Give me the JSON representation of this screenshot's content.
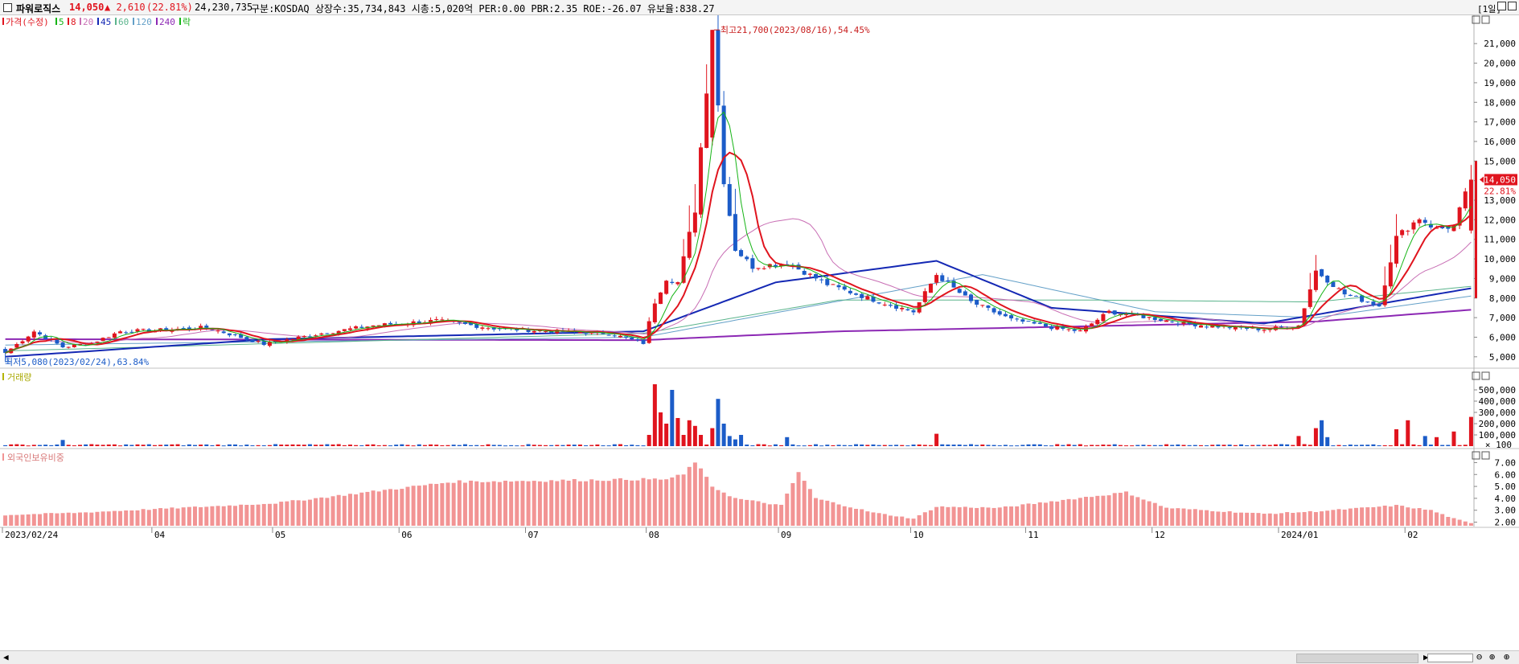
{
  "header": {
    "name": "파워로직스",
    "price": "14,050",
    "change": "▲ 2,610",
    "change_pct": "(22.81%)",
    "volume": "24,230,735",
    "info": "구분:KOSDAQ 상장수:35,734,843 시총:5,020억 PER:0.00 PBR:2.35 ROE:-26.07 유보율:838.27",
    "period": "[1일]"
  },
  "colors": {
    "up": "#e0141e",
    "down": "#1c5cc8",
    "ma5": "#16b416",
    "ma8": "#e0141e",
    "ma20": "#c86eb4",
    "ma45": "#1428b4",
    "ma60": "#5ab48c",
    "ma120": "#64a0c8",
    "ma240": "#8c28b4",
    "foreign": "#f29494"
  },
  "chart_data": [
    {
      "type": "candlestick",
      "title": "가격(수정)",
      "legend": [
        {
          "label": "가격(수정)",
          "color": "#e0141e"
        },
        {
          "label": "5",
          "color": "#16b416"
        },
        {
          "label": "8",
          "color": "#e0141e"
        },
        {
          "label": "20",
          "color": "#c86eb4"
        },
        {
          "label": "45",
          "color": "#1428b4"
        },
        {
          "label": "60",
          "color": "#5ab48c"
        },
        {
          "label": "120",
          "color": "#64a0c8"
        },
        {
          "label": "240",
          "color": "#8c28b4"
        },
        {
          "label": "락",
          "color": "#16b416"
        }
      ],
      "ylim": [
        4500,
        22200
      ],
      "yticks": [
        "5,000",
        "6,000",
        "7,000",
        "8,000",
        "9,000",
        "10,000",
        "11,000",
        "12,000",
        "13,000",
        "14,000",
        "15,000",
        "16,000",
        "17,000",
        "18,000",
        "19,000",
        "20,000",
        "21,000"
      ],
      "annotations": {
        "high": "최고21,700(2023/08/16),54.45%",
        "low": "최저5,080(2023/02/24),63.84%"
      },
      "last_price_label": "14,050",
      "last_pct_label": "22.81%",
      "anchors": [
        {
          "d": "2023-02-24",
          "c": 5200
        },
        {
          "d": "2023-03-03",
          "c": 6300
        },
        {
          "d": "2023-03-10",
          "c": 5500
        },
        {
          "d": "2023-03-17",
          "c": 5700
        },
        {
          "d": "2023-03-24",
          "c": 6300
        },
        {
          "d": "2023-04-03",
          "c": 6350
        },
        {
          "d": "2023-04-14",
          "c": 6500
        },
        {
          "d": "2023-04-28",
          "c": 5650
        },
        {
          "d": "2023-05-12",
          "c": 6200
        },
        {
          "d": "2023-05-25",
          "c": 6600
        },
        {
          "d": "2023-06-09",
          "c": 6850
        },
        {
          "d": "2023-06-23",
          "c": 6450
        },
        {
          "d": "2023-07-07",
          "c": 6300
        },
        {
          "d": "2023-07-21",
          "c": 6200
        },
        {
          "d": "2023-07-31",
          "c": 5700
        },
        {
          "d": "2023-08-02",
          "c": 7800
        },
        {
          "d": "2023-08-04",
          "c": 9000
        },
        {
          "d": "2023-08-08",
          "c": 8800
        },
        {
          "d": "2023-08-11",
          "c": 12500
        },
        {
          "d": "2023-08-14",
          "c": 15700
        },
        {
          "d": "2023-08-16",
          "c": 21700
        },
        {
          "d": "2023-08-18",
          "c": 14000
        },
        {
          "d": "2023-08-22",
          "c": 10500
        },
        {
          "d": "2023-08-25",
          "c": 9600
        },
        {
          "d": "2023-09-04",
          "c": 9800
        },
        {
          "d": "2023-09-13",
          "c": 8700
        },
        {
          "d": "2023-09-22",
          "c": 8000
        },
        {
          "d": "2023-10-04",
          "c": 7300
        },
        {
          "d": "2023-10-10",
          "c": 9200
        },
        {
          "d": "2023-10-18",
          "c": 7800
        },
        {
          "d": "2023-10-27",
          "c": 6900
        },
        {
          "d": "2023-11-07",
          "c": 6500
        },
        {
          "d": "2023-11-14",
          "c": 6300
        },
        {
          "d": "2023-11-21",
          "c": 7300
        },
        {
          "d": "2023-11-30",
          "c": 7000
        },
        {
          "d": "2023-12-08",
          "c": 6700
        },
        {
          "d": "2023-12-20",
          "c": 6500
        },
        {
          "d": "2023-12-28",
          "c": 6400
        },
        {
          "d": "2024-01-05",
          "c": 6600
        },
        {
          "d": "2024-01-10",
          "c": 9400
        },
        {
          "d": "2024-01-17",
          "c": 8200
        },
        {
          "d": "2024-01-25",
          "c": 7600
        },
        {
          "d": "2024-01-30",
          "c": 11100
        },
        {
          "d": "2024-02-05",
          "c": 12100
        },
        {
          "d": "2024-02-08",
          "c": 11500
        },
        {
          "d": "2024-02-13",
          "c": 11700
        },
        {
          "d": "2024-02-16",
          "c": 14050
        }
      ],
      "ma_levels": {
        "ma45": [
          {
            "d": "2023-02-24",
            "v": 5000
          },
          {
            "d": "2023-05-01",
            "v": 5900
          },
          {
            "d": "2023-07-31",
            "v": 6300
          },
          {
            "d": "2023-08-31",
            "v": 8800
          },
          {
            "d": "2023-10-10",
            "v": 9900
          },
          {
            "d": "2023-11-07",
            "v": 7500
          },
          {
            "d": "2023-12-28",
            "v": 6700
          },
          {
            "d": "2024-02-16",
            "v": 8500
          }
        ],
        "ma60": [
          {
            "d": "2023-02-24",
            "v": 5300
          },
          {
            "d": "2023-07-31",
            "v": 6200
          },
          {
            "d": "2023-09-15",
            "v": 7900
          },
          {
            "d": "2023-11-15",
            "v": 7900
          },
          {
            "d": "2024-01-10",
            "v": 7800
          },
          {
            "d": "2024-02-16",
            "v": 8600
          }
        ],
        "ma120": [
          {
            "d": "2023-02-24",
            "v": 5600
          },
          {
            "d": "2023-07-31",
            "v": 6000
          },
          {
            "d": "2023-10-20",
            "v": 9200
          },
          {
            "d": "2023-12-01",
            "v": 7300
          },
          {
            "d": "2024-01-10",
            "v": 7000
          },
          {
            "d": "2024-02-16",
            "v": 8100
          }
        ],
        "ma240": [
          {
            "d": "2023-02-24",
            "v": 5900
          },
          {
            "d": "2023-07-31",
            "v": 5850
          },
          {
            "d": "2023-09-15",
            "v": 6300
          },
          {
            "d": "2024-01-10",
            "v": 6800
          },
          {
            "d": "2024-02-16",
            "v": 7400
          }
        ]
      }
    },
    {
      "type": "bar",
      "title": "거래량",
      "ylim": [
        0,
        600000
      ],
      "yticks": [
        "100,000",
        "200,000",
        "300,000",
        "400,000",
        "500,000"
      ],
      "unit_label": "× 100",
      "spikes": [
        {
          "d": "2023-08-01",
          "v": 100000
        },
        {
          "d": "2023-08-02",
          "v": 550000
        },
        {
          "d": "2023-08-03",
          "v": 300000
        },
        {
          "d": "2023-08-04",
          "v": 200000
        },
        {
          "d": "2023-08-07",
          "v": 500000
        },
        {
          "d": "2023-08-08",
          "v": 250000
        },
        {
          "d": "2023-08-09",
          "v": 100000
        },
        {
          "d": "2023-08-10",
          "v": 230000
        },
        {
          "d": "2023-08-11",
          "v": 180000
        },
        {
          "d": "2023-08-14",
          "v": 100000
        },
        {
          "d": "2023-08-16",
          "v": 160000
        },
        {
          "d": "2023-08-17",
          "v": 420000
        },
        {
          "d": "2023-08-18",
          "v": 200000
        },
        {
          "d": "2023-08-21",
          "v": 90000
        },
        {
          "d": "2023-08-22",
          "v": 60000
        },
        {
          "d": "2023-08-23",
          "v": 100000
        },
        {
          "d": "2023-09-04",
          "v": 80000
        },
        {
          "d": "2023-10-10",
          "v": 110000
        },
        {
          "d": "2024-01-05",
          "v": 90000
        },
        {
          "d": "2024-01-10",
          "v": 160000
        },
        {
          "d": "2024-01-11",
          "v": 230000
        },
        {
          "d": "2024-01-12",
          "v": 80000
        },
        {
          "d": "2024-01-30",
          "v": 150000
        },
        {
          "d": "2024-02-01",
          "v": 230000
        },
        {
          "d": "2024-02-06",
          "v": 90000
        },
        {
          "d": "2024-02-08",
          "v": 80000
        },
        {
          "d": "2024-02-13",
          "v": 130000
        },
        {
          "d": "2024-02-16",
          "v": 260000
        }
      ],
      "base": 12000
    },
    {
      "type": "bar",
      "title": "외국인보유비중",
      "ylim": [
        1.7,
        7.3
      ],
      "yticks": [
        "2.00",
        "3.00",
        "4.00",
        "5.00",
        "6.00",
        "7.00"
      ],
      "anchors": [
        {
          "d": "2023-02-24",
          "v": 2.6
        },
        {
          "d": "2023-03-15",
          "v": 2.8
        },
        {
          "d": "2023-04-03",
          "v": 3.1
        },
        {
          "d": "2023-04-20",
          "v": 3.4
        },
        {
          "d": "2023-05-02",
          "v": 3.6
        },
        {
          "d": "2023-05-22",
          "v": 4.4
        },
        {
          "d": "2023-06-14",
          "v": 5.4
        },
        {
          "d": "2023-07-10",
          "v": 5.5
        },
        {
          "d": "2023-07-28",
          "v": 5.6
        },
        {
          "d": "2023-08-04",
          "v": 5.6
        },
        {
          "d": "2023-08-09",
          "v": 6.0
        },
        {
          "d": "2023-08-11",
          "v": 7.1
        },
        {
          "d": "2023-08-16",
          "v": 5.0
        },
        {
          "d": "2023-08-22",
          "v": 4.0
        },
        {
          "d": "2023-09-01",
          "v": 3.4
        },
        {
          "d": "2023-09-06",
          "v": 6.2
        },
        {
          "d": "2023-09-11",
          "v": 4.0
        },
        {
          "d": "2023-09-25",
          "v": 2.8
        },
        {
          "d": "2023-10-04",
          "v": 2.3
        },
        {
          "d": "2023-10-10",
          "v": 3.3
        },
        {
          "d": "2023-10-25",
          "v": 3.2
        },
        {
          "d": "2023-11-15",
          "v": 4.1
        },
        {
          "d": "2023-11-24",
          "v": 4.5
        },
        {
          "d": "2023-12-05",
          "v": 3.2
        },
        {
          "d": "2023-12-28",
          "v": 2.7
        },
        {
          "d": "2024-01-10",
          "v": 2.9
        },
        {
          "d": "2024-01-30",
          "v": 3.4
        },
        {
          "d": "2024-02-07",
          "v": 3.0
        },
        {
          "d": "2024-02-13",
          "v": 2.3
        },
        {
          "d": "2024-02-16",
          "v": 1.9
        }
      ]
    }
  ],
  "x_labels": [
    {
      "d": "2023-02-24",
      "t": "2023/02/24"
    },
    {
      "d": "2023-04-03",
      "t": "04"
    },
    {
      "d": "2023-05-02",
      "t": "05"
    },
    {
      "d": "2023-06-01",
      "t": "06"
    },
    {
      "d": "2023-07-03",
      "t": "07"
    },
    {
      "d": "2023-08-01",
      "t": "08"
    },
    {
      "d": "2023-09-01",
      "t": "09"
    },
    {
      "d": "2023-10-04",
      "t": "10"
    },
    {
      "d": "2023-11-01",
      "t": "11"
    },
    {
      "d": "2023-12-01",
      "t": "12"
    },
    {
      "d": "2024-01-02",
      "t": "2024/01"
    },
    {
      "d": "2024-02-01",
      "t": "02"
    }
  ],
  "x_range": {
    "start": "2023-02-24",
    "end": "2024-02-16"
  }
}
